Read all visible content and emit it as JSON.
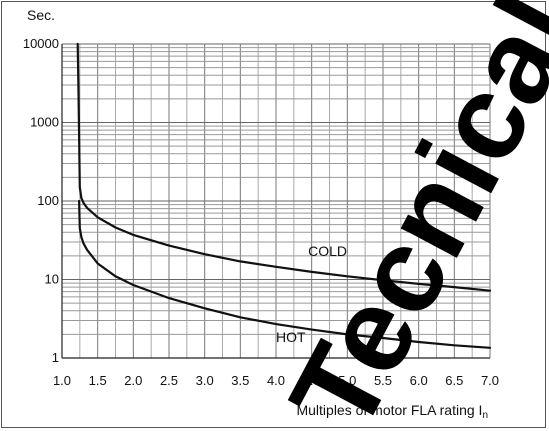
{
  "chart_data": {
    "type": "line",
    "title": "",
    "ylabel": "Sec.",
    "xlabel": "Multiples of motor FLA rating I",
    "xlabel_sub": "n",
    "xlim": [
      1.0,
      7.0
    ],
    "ylim": [
      1,
      10000
    ],
    "yscale": "log",
    "grid": true,
    "x_ticks": [
      "1.0",
      "1.5",
      "2.0",
      "2.5",
      "3.0",
      "3.5",
      "4.0",
      "4.5",
      "5.0",
      "5.5",
      "6.0",
      "6.5",
      "7.0"
    ],
    "y_ticks": [
      "1",
      "10",
      "100",
      "1000",
      "10000"
    ],
    "series": [
      {
        "name": "COLD",
        "color": "#111111",
        "x": [
          1.22,
          1.23,
          1.24,
          1.25,
          1.27,
          1.3,
          1.35,
          1.5,
          1.75,
          2.0,
          2.5,
          3.0,
          3.5,
          4.0,
          4.5,
          5.0,
          5.5,
          6.0,
          6.5,
          7.0
        ],
        "y": [
          10000,
          3000,
          700,
          150,
          110,
          95,
          82,
          62,
          46,
          37,
          27,
          21,
          17,
          14.5,
          12.5,
          11,
          9.8,
          8.8,
          8,
          7.2
        ]
      },
      {
        "name": "HOT",
        "color": "#111111",
        "x": [
          1.24,
          1.25,
          1.27,
          1.3,
          1.35,
          1.5,
          1.75,
          2.0,
          2.5,
          3.0,
          3.5,
          4.0,
          4.5,
          5.0,
          5.5,
          6.0,
          6.5,
          7.0
        ],
        "y": [
          100,
          45,
          35,
          29,
          24,
          16,
          11,
          8.5,
          5.8,
          4.3,
          3.3,
          2.7,
          2.3,
          2.0,
          1.8,
          1.6,
          1.45,
          1.35
        ]
      }
    ],
    "annotations": [
      {
        "text": "COLD",
        "x": 4.45,
        "y": 20
      },
      {
        "text": "HOT",
        "x": 4.0,
        "y": 1.6
      }
    ]
  },
  "watermark": {
    "text": "Tecnical Da",
    "color": "#000000"
  }
}
